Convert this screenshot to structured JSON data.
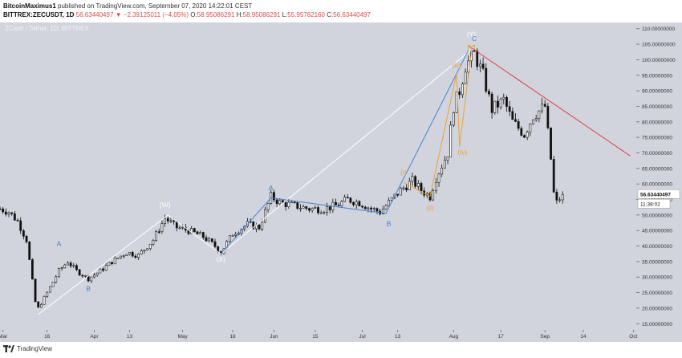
{
  "header": {
    "author": "BitcoinMaximus1",
    "published": "published on TradingView.com, September 07, 2020 14:22:01 CEST",
    "symbol": "BITTREX:ZECUSDT, 1D",
    "change": "56.63440497 ▼ −2.39125011 (−4.05%)",
    "o_label": "O:",
    "o_value": "58.95086291",
    "h_label": "H:",
    "h_value": "58.95086291",
    "l_label": "L:",
    "l_value": "55.95782160",
    "c_label": "C:",
    "c_value": "56.63440497"
  },
  "footer": {
    "brand": "TradingView"
  },
  "colors": {
    "background": "#d1d4dc",
    "candle": "#111111",
    "wave_blue": "#4a7fd4",
    "wave_orange": "#e8a23a",
    "wave_white": "#ffffff",
    "resistance": "#e0393e",
    "price_tag": "#ffffff"
  },
  "chart_data": {
    "type": "candlestick",
    "watermark": "ZCash / Tether, 1D, BITTREX",
    "y_axis": {
      "scale": "linear",
      "range": [
        13,
        112
      ],
      "ticks": [
        15,
        20,
        25,
        30,
        35,
        40,
        45,
        50,
        55,
        60,
        65,
        70,
        75,
        80,
        85,
        90,
        95,
        100,
        105,
        110
      ],
      "tick_labels": [
        "15.00000000",
        "20.00000000",
        "25.00000000",
        "30.00000000",
        "35.00000000",
        "40.00000000",
        "45.00000000",
        "50.00000000",
        "55.00000000",
        "60.00000000",
        "65.00000000",
        "70.00000000",
        "75.00000000",
        "80.00000000",
        "85.00000000",
        "90.00000000",
        "95.00000000",
        "100.00000000",
        "105.00000000",
        "110.00000000"
      ]
    },
    "x_axis": {
      "type": "date",
      "range": [
        "2020-02-29",
        "2020-10-02"
      ],
      "ticks": [
        "2020-03-01",
        "2020-03-16",
        "2020-04-01",
        "2020-04-13",
        "2020-05-01",
        "2020-05-18",
        "2020-06-01",
        "2020-06-15",
        "2020-07-01",
        "2020-07-13",
        "2020-08-01",
        "2020-08-17",
        "2020-09-01",
        "2020-09-14",
        "2020-10-01"
      ],
      "tick_labels": [
        "Mar",
        "16",
        "Apr",
        "13",
        "May",
        "18",
        "Jun",
        "15",
        "Jul",
        "13",
        "Aug",
        "17",
        "Sep",
        "14",
        "Oct"
      ]
    },
    "grid": false,
    "last_price": "56.63440497",
    "countdown": "11:38:02",
    "anchors": [
      [
        "2020-02-29",
        52
      ],
      [
        "2020-03-03",
        51
      ],
      [
        "2020-03-06",
        48
      ],
      [
        "2020-03-09",
        42
      ],
      [
        "2020-03-12",
        22
      ],
      [
        "2020-03-13",
        20
      ],
      [
        "2020-03-16",
        25
      ],
      [
        "2020-03-20",
        32
      ],
      [
        "2020-03-23",
        35
      ],
      [
        "2020-03-26",
        32
      ],
      [
        "2020-03-30",
        29.5
      ],
      [
        "2020-04-03",
        32
      ],
      [
        "2020-04-07",
        35
      ],
      [
        "2020-04-12",
        38
      ],
      [
        "2020-04-16",
        37
      ],
      [
        "2020-04-21",
        42
      ],
      [
        "2020-04-25",
        49
      ],
      [
        "2020-04-29",
        46
      ],
      [
        "2020-05-03",
        45
      ],
      [
        "2020-05-08",
        43
      ],
      [
        "2020-05-12",
        40
      ],
      [
        "2020-05-14",
        38
      ],
      [
        "2020-05-18",
        44
      ],
      [
        "2020-05-23",
        47
      ],
      [
        "2020-05-27",
        46
      ],
      [
        "2020-05-31",
        56
      ],
      [
        "2020-06-03",
        54
      ],
      [
        "2020-06-08",
        53
      ],
      [
        "2020-06-13",
        52
      ],
      [
        "2020-06-18",
        52
      ],
      [
        "2020-06-22",
        53
      ],
      [
        "2020-06-26",
        55
      ],
      [
        "2020-06-30",
        54
      ],
      [
        "2020-07-04",
        52
      ],
      [
        "2020-07-07",
        51
      ],
      [
        "2020-07-11",
        55
      ],
      [
        "2020-07-14",
        58
      ],
      [
        "2020-07-18",
        61
      ],
      [
        "2020-07-21",
        58
      ],
      [
        "2020-07-24",
        56
      ],
      [
        "2020-07-26",
        62
      ],
      [
        "2020-07-30",
        70
      ],
      [
        "2020-08-01",
        85
      ],
      [
        "2020-08-03",
        90
      ],
      [
        "2020-08-05",
        98
      ],
      [
        "2020-08-08",
        102
      ],
      [
        "2020-08-11",
        95
      ],
      [
        "2020-08-14",
        84
      ],
      [
        "2020-08-18",
        87
      ],
      [
        "2020-08-21",
        80
      ],
      [
        "2020-08-25",
        76
      ],
      [
        "2020-08-28",
        82
      ],
      [
        "2020-09-01",
        85
      ],
      [
        "2020-09-03",
        68
      ],
      [
        "2020-09-04",
        57
      ],
      [
        "2020-09-05",
        54
      ],
      [
        "2020-09-07",
        56.6
      ]
    ],
    "overlays": {
      "lines": [
        {
          "color": "wave_white",
          "points": [
            [
              "2020-03-13",
              18
            ],
            [
              "2020-04-26",
              50
            ],
            [
              "2020-05-14",
              37.5
            ],
            [
              "2020-08-08",
              104
            ]
          ]
        },
        {
          "color": "wave_blue",
          "points": [
            [
              "2020-05-14",
              37.5
            ],
            [
              "2020-05-31",
              55.5
            ],
            [
              "2020-07-09",
              50.5
            ],
            [
              "2020-08-06",
              103
            ]
          ]
        },
        {
          "color": "wave_orange",
          "points": [
            [
              "2020-07-15",
              60.5
            ],
            [
              "2020-07-24",
              56
            ],
            [
              "2020-08-02",
              95.5
            ],
            [
              "2020-08-03",
              72
            ],
            [
              "2020-08-07",
              102.5
            ]
          ]
        },
        {
          "color": "resistance",
          "points": [
            [
              "2020-08-06",
              104.5
            ],
            [
              "2020-09-30",
              69
            ]
          ]
        }
      ],
      "labels": [
        {
          "text": "(Y)",
          "date": "2020-08-07",
          "value": 107.5,
          "color": "wave_white"
        },
        {
          "text": "C",
          "date": "2020-08-08",
          "value": 106,
          "color": "wave_blue"
        },
        {
          "text": "(v)",
          "date": "2020-08-07",
          "value": 103.5,
          "color": "wave_orange"
        },
        {
          "text": "(iii)",
          "date": "2020-08-02",
          "value": 97.5,
          "color": "wave_orange"
        },
        {
          "text": "(iv)",
          "date": "2020-08-04",
          "value": 69.5,
          "color": "wave_orange"
        },
        {
          "text": "(i)",
          "date": "2020-07-15",
          "value": 63,
          "color": "wave_orange"
        },
        {
          "text": "(ii)",
          "date": "2020-07-24",
          "value": 51.5,
          "color": "wave_orange"
        },
        {
          "text": "(W)",
          "date": "2020-04-25",
          "value": 52.5,
          "color": "wave_white"
        },
        {
          "text": "(X)",
          "date": "2020-05-14",
          "value": 35,
          "color": "wave_white"
        },
        {
          "text": "A",
          "date": "2020-03-20",
          "value": 40,
          "color": "wave_blue"
        },
        {
          "text": "B",
          "date": "2020-03-30",
          "value": 25.5,
          "color": "wave_blue"
        },
        {
          "text": "A",
          "date": "2020-05-31",
          "value": 58,
          "color": "wave_blue"
        },
        {
          "text": "B",
          "date": "2020-07-10",
          "value": 46.5,
          "color": "wave_blue"
        }
      ]
    }
  }
}
